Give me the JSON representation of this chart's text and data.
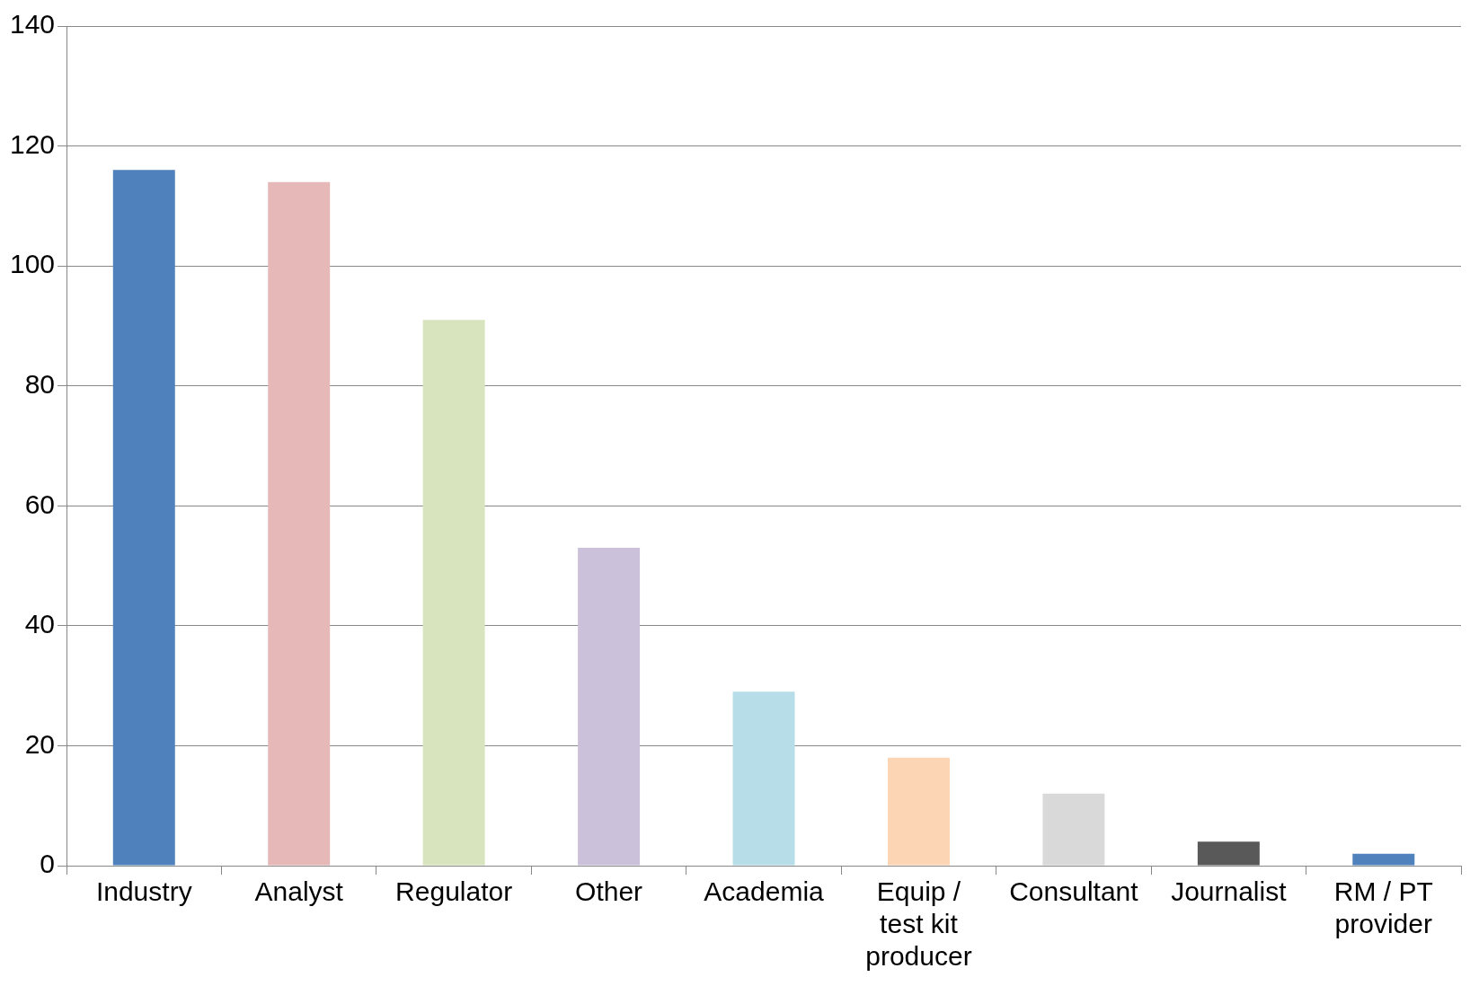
{
  "chart_data": {
    "type": "bar",
    "categories": [
      "Industry",
      "Analyst",
      "Regulator",
      "Other",
      "Academia",
      "Equip / test kit producer",
      "Consultant",
      "Journalist",
      "RM / PT provider"
    ],
    "values": [
      116,
      114,
      91,
      53,
      29,
      18,
      12,
      4,
      2
    ],
    "colors": [
      "#4f81bd",
      "#e6b9b8",
      "#d7e4bd",
      "#ccc1da",
      "#b7dee8",
      "#fcd5b5",
      "#d9d9d9",
      "#595959",
      "#4f81bd"
    ],
    "ylim": [
      0,
      140
    ],
    "yticks": [
      0,
      20,
      40,
      60,
      80,
      100,
      120,
      140
    ],
    "grid": "y",
    "legend": false
  }
}
